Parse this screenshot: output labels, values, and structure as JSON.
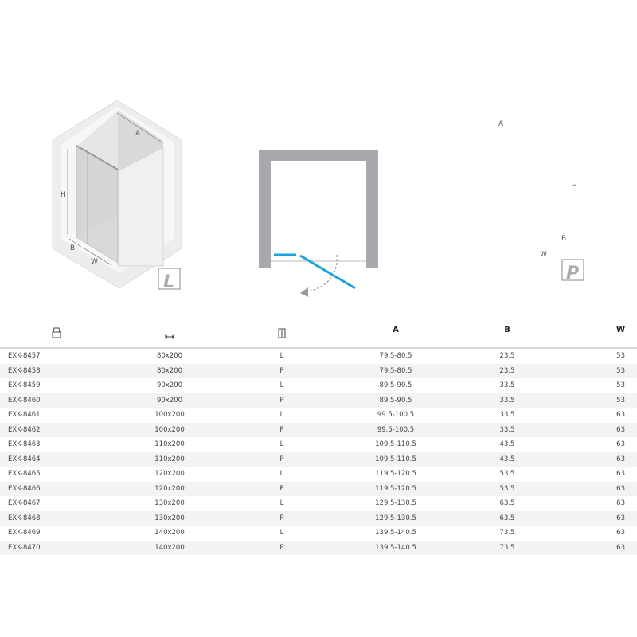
{
  "diagrams": {
    "left": {
      "label_a": "A",
      "label_h": "H",
      "label_b": "B",
      "label_w": "W",
      "badge": "L"
    },
    "right": {
      "label_a": "A",
      "label_h": "H",
      "label_b": "B",
      "label_w": "W",
      "badge": "P"
    },
    "colors": {
      "door": "#1aa3dc",
      "wall": "#a7a9ac",
      "arrow": "#9a9a9a"
    }
  },
  "table": {
    "header_icons": [
      "product-code-icon",
      "size-icon",
      "door-side-icon"
    ],
    "headers": [
      "",
      "",
      "",
      "A",
      "B",
      "W"
    ],
    "rows": [
      [
        "EXK-8457",
        "80x200",
        "L",
        "79.5-80.5",
        "23.5",
        "53"
      ],
      [
        "EXK-8458",
        "80x200",
        "P",
        "79.5-80.5",
        "23.5",
        "53"
      ],
      [
        "EXK-8459",
        "90x200",
        "L",
        "89.5-90.5",
        "33.5",
        "53"
      ],
      [
        "EXK-8460",
        "90x200",
        "P",
        "89.5-90.5",
        "33.5",
        "53"
      ],
      [
        "EXK-8461",
        "100x200",
        "L",
        "99.5-100.5",
        "33.5",
        "63"
      ],
      [
        "EXK-8462",
        "100x200",
        "P",
        "99.5-100.5",
        "33.5",
        "63"
      ],
      [
        "EXK-8463",
        "110x200",
        "L",
        "109.5-110.5",
        "43.5",
        "63"
      ],
      [
        "EXK-8464",
        "110x200",
        "P",
        "109.5-110.5",
        "43.5",
        "63"
      ],
      [
        "EXK-8465",
        "120x200",
        "L",
        "119.5-120.5",
        "53.5",
        "63"
      ],
      [
        "EXK-8466",
        "120x200",
        "P",
        "119.5-120.5",
        "53.5",
        "63"
      ],
      [
        "EXK-8467",
        "130x200",
        "L",
        "129.5-130.5",
        "63.5",
        "63"
      ],
      [
        "EXK-8468",
        "130x200",
        "P",
        "129.5-130.5",
        "63.5",
        "63"
      ],
      [
        "EXK-8469",
        "140x200",
        "L",
        "139.5-140.5",
        "73.5",
        "63"
      ],
      [
        "EXK-8470",
        "140x200",
        "P",
        "139.5-140.5",
        "73.5",
        "63"
      ]
    ]
  }
}
